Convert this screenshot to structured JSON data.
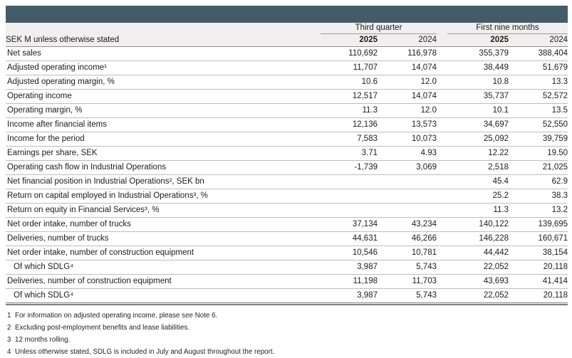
{
  "colors": {
    "header_bar": "#425C69",
    "header_band": "#F0EFED",
    "row_border": "#BDBDBD",
    "strong_border": "#7E7E7E",
    "text": "#1B1B1B"
  },
  "table": {
    "unit_label": "SEK M unless otherwise stated",
    "col_groups": [
      {
        "label": "Third quarter"
      },
      {
        "label": "First nine months"
      }
    ],
    "years": [
      "2025",
      "2024",
      "2025",
      "2024"
    ],
    "rows": [
      {
        "label": "Net sales",
        "indent": false,
        "values": [
          "110,692",
          "116,978",
          "355,379",
          "388,404"
        ]
      },
      {
        "label": "Adjusted operating income¹",
        "indent": false,
        "values": [
          "11,707",
          "14,074",
          "38,449",
          "51,679"
        ]
      },
      {
        "label": "Adjusted operating margin, %",
        "indent": false,
        "values": [
          "10.6",
          "12.0",
          "10.8",
          "13.3"
        ]
      },
      {
        "label": "Operating income",
        "indent": false,
        "values": [
          "12,517",
          "14,074",
          "35,737",
          "52,572"
        ]
      },
      {
        "label": "Operating margin, %",
        "indent": false,
        "values": [
          "11.3",
          "12.0",
          "10.1",
          "13.5"
        ]
      },
      {
        "label": "Income after financial items",
        "indent": false,
        "values": [
          "12,136",
          "13,573",
          "34,697",
          "52,550"
        ]
      },
      {
        "label": "Income for the period",
        "indent": false,
        "values": [
          "7,583",
          "10,073",
          "25,092",
          "39,759"
        ]
      },
      {
        "label": "Earnings per share, SEK",
        "indent": false,
        "values": [
          "3.71",
          "4.93",
          "12.22",
          "19.50"
        ]
      },
      {
        "label": "Operating cash flow in Industrial Operations",
        "indent": false,
        "values": [
          "-1,739",
          "3,069",
          "2,518",
          "21,025"
        ]
      },
      {
        "label": "Net financial position in Industrial Operations², SEK bn",
        "indent": false,
        "values": [
          "",
          "",
          "45.4",
          "62.9"
        ]
      },
      {
        "label": "Return on capital employed in Industrial Operations³, %",
        "indent": false,
        "values": [
          "",
          "",
          "25.2",
          "38.3"
        ]
      },
      {
        "label": "Return on equity in Financial Services³, %",
        "indent": false,
        "values": [
          "",
          "",
          "11.3",
          "13.2"
        ]
      },
      {
        "label": "Net order intake, number of trucks",
        "indent": false,
        "values": [
          "37,134",
          "43,234",
          "140,122",
          "139,695"
        ]
      },
      {
        "label": "Deliveries, number of trucks",
        "indent": false,
        "values": [
          "44,631",
          "46,266",
          "146,228",
          "160,671"
        ]
      },
      {
        "label": "Net order intake, number of construction equipment",
        "indent": false,
        "values": [
          "10,546",
          "10,781",
          "44,442",
          "38,154"
        ]
      },
      {
        "label": "Of which SDLG⁴",
        "indent": true,
        "values": [
          "3,987",
          "5,743",
          "22,052",
          "20,118"
        ]
      },
      {
        "label": "Deliveries, number of construction equipment",
        "indent": false,
        "values": [
          "11,198",
          "11,703",
          "43,693",
          "41,414"
        ]
      },
      {
        "label": "Of which SDLG⁴",
        "indent": true,
        "values": [
          "3,987",
          "5,743",
          "22,052",
          "20,118"
        ]
      }
    ]
  },
  "footnotes": [
    {
      "num": "1",
      "text": "For information on adjusted operating income, please see Note 6."
    },
    {
      "num": "2",
      "text": "Excluding post-employment benefits and lease liabilities."
    },
    {
      "num": "3",
      "text": "12 months rolling."
    },
    {
      "num": "4",
      "text": "Unless otherwise stated, SDLG is included in July and August throughout the report."
    }
  ]
}
